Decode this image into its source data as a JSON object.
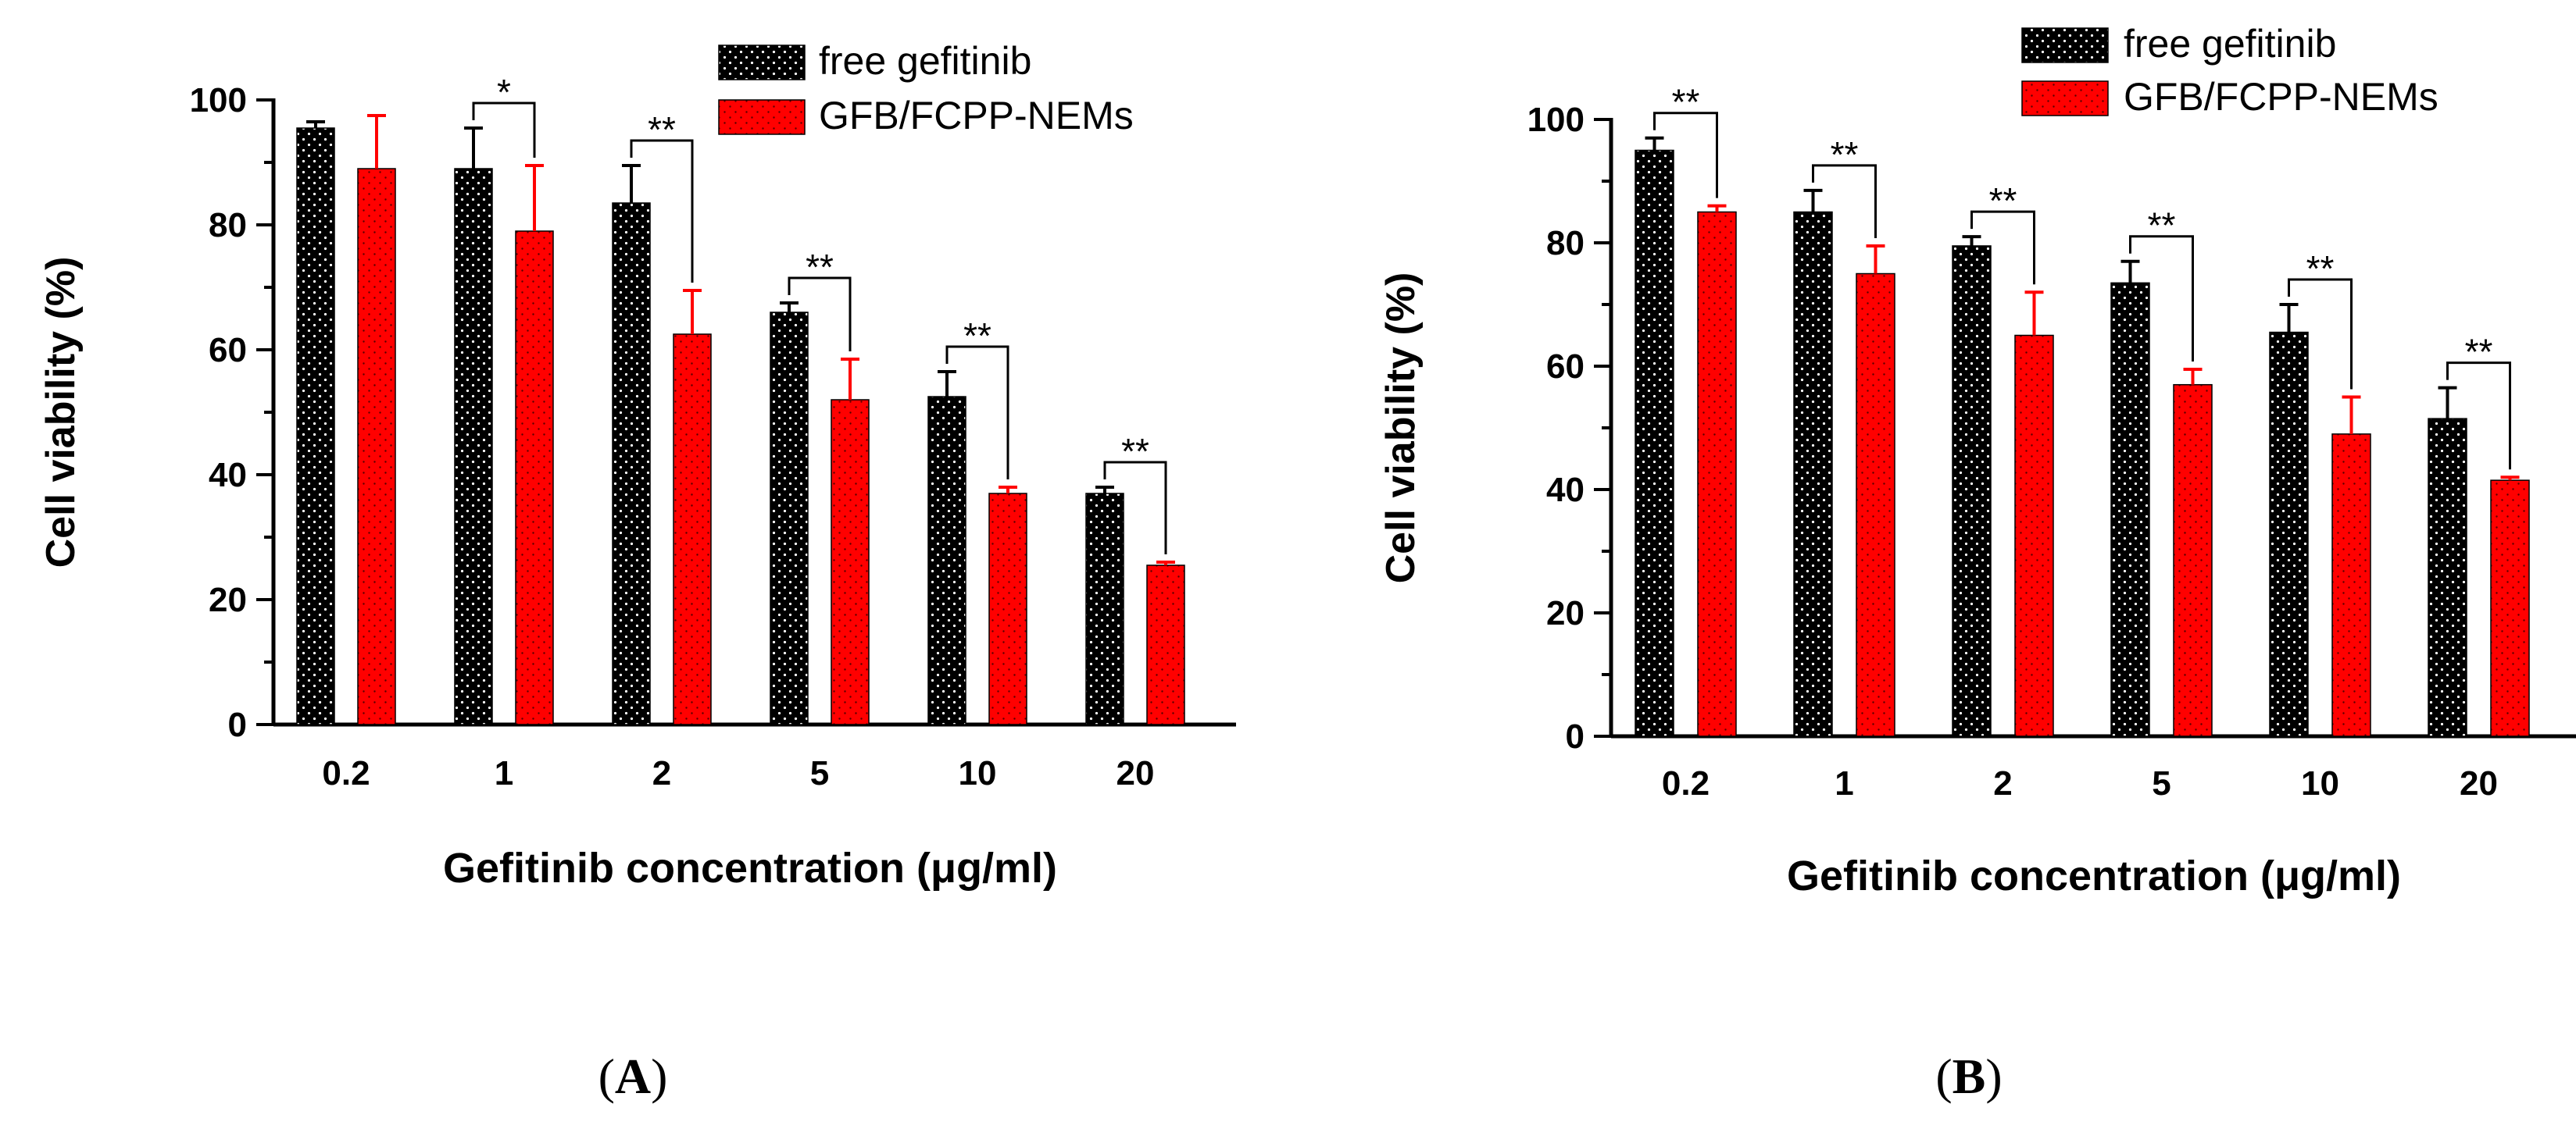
{
  "colors": {
    "free": "#000000",
    "nems": "#ff0000",
    "dot": "#ffffff",
    "axis": "#000000"
  },
  "chart_data": [
    {
      "type": "bar",
      "panel_label": "(A)",
      "panel_letter": "A",
      "xlabel": "Gefitinib concentration (μg/ml)",
      "ylabel": "Cell viability (%)",
      "ylim": [
        0,
        100
      ],
      "yticks": [
        "0",
        "20",
        "40",
        "60",
        "80",
        "100"
      ],
      "categories": [
        "0.2",
        "1",
        "2",
        "5",
        "10",
        "20"
      ],
      "legend_position": "top-right",
      "series": [
        {
          "name": "free gefitinib",
          "values": [
            95.5,
            89,
            83.5,
            66,
            52.5,
            37
          ],
          "errors": [
            1,
            6.5,
            6,
            1.5,
            4,
            1
          ]
        },
        {
          "name": "GFB/FCPP-NEMs",
          "values": [
            89,
            79,
            62.5,
            52,
            37,
            25.5
          ],
          "errors": [
            8.5,
            10.5,
            7,
            6.5,
            1,
            0.5
          ]
        }
      ],
      "significance": [
        "",
        "*",
        "**",
        "**",
        "**",
        "**"
      ]
    },
    {
      "type": "bar",
      "panel_label": "(B)",
      "panel_letter": "B",
      "xlabel": "Gefitinib concentration (μg/ml)",
      "ylabel": "Cell viability (%)",
      "ylim": [
        0,
        100
      ],
      "yticks": [
        "0",
        "20",
        "40",
        "60",
        "80",
        "100"
      ],
      "categories": [
        "0.2",
        "1",
        "2",
        "5",
        "10",
        "20"
      ],
      "legend_position": "top-right",
      "series": [
        {
          "name": "free gefitinib",
          "values": [
            95,
            85,
            79.5,
            73.5,
            65.5,
            51.5
          ],
          "errors": [
            2,
            3.5,
            1.5,
            3.5,
            4.5,
            5
          ]
        },
        {
          "name": "GFB/FCPP-NEMs",
          "values": [
            85,
            75,
            65,
            57,
            49,
            41.5
          ],
          "errors": [
            1,
            4.5,
            7,
            2.5,
            6,
            0.5
          ]
        }
      ],
      "significance": [
        "**",
        "**",
        "**",
        "**",
        "**",
        "**"
      ]
    }
  ]
}
